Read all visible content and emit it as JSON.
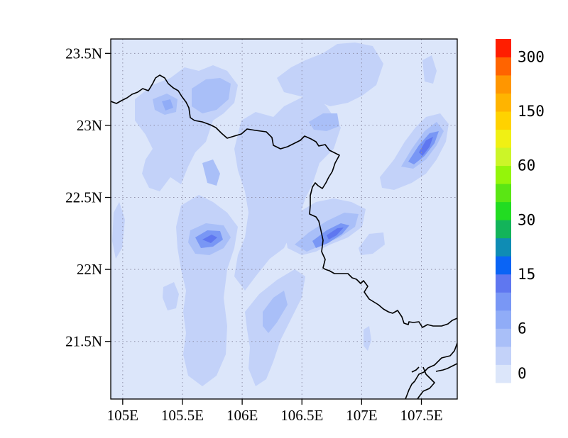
{
  "map": {
    "lat_labels": [
      "23.5N",
      "23N",
      "22.5N",
      "22N",
      "21.5N"
    ],
    "lat_values": [
      23.5,
      23.0,
      22.5,
      22.0,
      21.5
    ],
    "lon_labels": [
      "105E",
      "105.5E",
      "106E",
      "106.5E",
      "107E",
      "107.5E"
    ],
    "lon_values": [
      105.0,
      105.5,
      106.0,
      106.5,
      107.0,
      107.5
    ],
    "lon_range": [
      104.9,
      107.8
    ],
    "lat_range": [
      21.1,
      23.6
    ],
    "gridlines": "dotted",
    "background_color": "#dce6fa"
  },
  "colorbar": {
    "labels": [
      "0",
      "6",
      "15",
      "30",
      "60",
      "150",
      "300"
    ],
    "colors": [
      "#dce6fa",
      "#c3d2f9",
      "#a9bff8",
      "#90acf7",
      "#7997f5",
      "#5f77f0",
      "#0a64f5",
      "#0f8cb4",
      "#13b45a",
      "#22dc22",
      "#5ae614",
      "#94f50a",
      "#ccf528",
      "#f0f014",
      "#ffd200",
      "#ffb400",
      "#ff9600",
      "#ff6400",
      "#ff1e00"
    ]
  }
}
